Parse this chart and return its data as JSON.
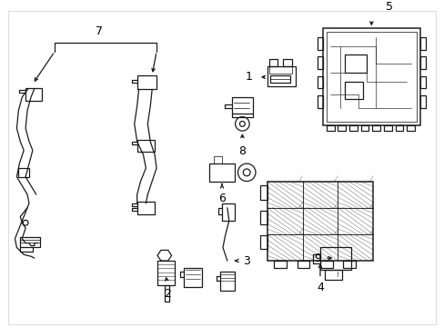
{
  "background_color": "#ffffff",
  "line_color": "#1a1a1a",
  "text_color": "#000000",
  "figsize": [
    4.89,
    3.6
  ],
  "dpi": 100,
  "border_color": "#cccccc"
}
